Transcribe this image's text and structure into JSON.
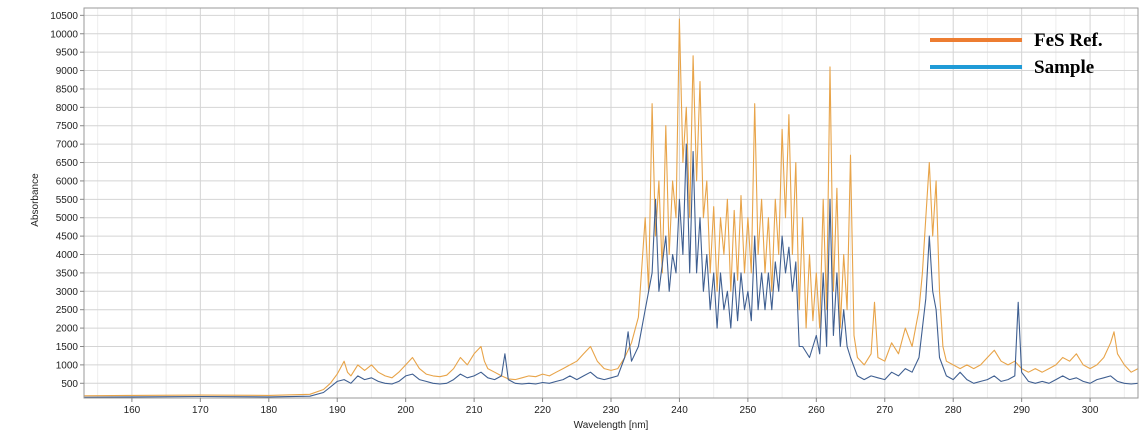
{
  "chart_data": {
    "type": "line",
    "title": "",
    "xlabel": "Wavelength [nm]",
    "ylabel": "Absorbance",
    "xlim": [
      153,
      307
    ],
    "ylim": [
      100,
      10700
    ],
    "grid": true,
    "legend_position": "top-right",
    "x_ticks": [
      160,
      170,
      180,
      190,
      200,
      210,
      220,
      230,
      240,
      250,
      260,
      270,
      280,
      290,
      300
    ],
    "y_ticks": [
      500,
      1000,
      1500,
      2000,
      2500,
      3000,
      3500,
      4000,
      4500,
      5000,
      5500,
      6000,
      6500,
      7000,
      7500,
      8000,
      8500,
      9000,
      9500,
      10000,
      10500
    ],
    "series": [
      {
        "name": "FeS Ref.",
        "color": "#e8a449",
        "legend_color": "#ed7d31",
        "points": [
          [
            153,
            160
          ],
          [
            160,
            170
          ],
          [
            170,
            180
          ],
          [
            180,
            170
          ],
          [
            186,
            200
          ],
          [
            188,
            330
          ],
          [
            189,
            500
          ],
          [
            190,
            750
          ],
          [
            191,
            1100
          ],
          [
            191.5,
            800
          ],
          [
            192,
            700
          ],
          [
            193,
            1000
          ],
          [
            194,
            850
          ],
          [
            195,
            1000
          ],
          [
            196,
            800
          ],
          [
            197,
            700
          ],
          [
            198,
            650
          ],
          [
            199,
            800
          ],
          [
            200,
            1000
          ],
          [
            201,
            1200
          ],
          [
            202,
            900
          ],
          [
            203,
            750
          ],
          [
            204,
            700
          ],
          [
            205,
            680
          ],
          [
            206,
            720
          ],
          [
            207,
            900
          ],
          [
            208,
            1200
          ],
          [
            209,
            1000
          ],
          [
            210,
            1300
          ],
          [
            211,
            1500
          ],
          [
            211.5,
            1100
          ],
          [
            212,
            900
          ],
          [
            213,
            800
          ],
          [
            214,
            700
          ],
          [
            215,
            620
          ],
          [
            216,
            600
          ],
          [
            217,
            650
          ],
          [
            218,
            700
          ],
          [
            219,
            680
          ],
          [
            220,
            750
          ],
          [
            221,
            700
          ],
          [
            222,
            800
          ],
          [
            223,
            900
          ],
          [
            224,
            1000
          ],
          [
            225,
            1100
          ],
          [
            226,
            1300
          ],
          [
            227,
            1500
          ],
          [
            228,
            1100
          ],
          [
            229,
            900
          ],
          [
            230,
            850
          ],
          [
            231,
            900
          ],
          [
            232,
            1200
          ],
          [
            233,
            1600
          ],
          [
            234,
            2300
          ],
          [
            235,
            5000
          ],
          [
            235.5,
            3000
          ],
          [
            236,
            8100
          ],
          [
            236.5,
            4500
          ],
          [
            237,
            6000
          ],
          [
            237.5,
            3500
          ],
          [
            238,
            7500
          ],
          [
            238.5,
            4000
          ],
          [
            239,
            6000
          ],
          [
            239.5,
            5000
          ],
          [
            240,
            10400
          ],
          [
            240.5,
            6500
          ],
          [
            241,
            8000
          ],
          [
            241.5,
            5000
          ],
          [
            242,
            9400
          ],
          [
            242.5,
            6000
          ],
          [
            243,
            8700
          ],
          [
            243.5,
            5000
          ],
          [
            244,
            6000
          ],
          [
            244.5,
            3500
          ],
          [
            245,
            5300
          ],
          [
            245.5,
            3000
          ],
          [
            246,
            5000
          ],
          [
            246.5,
            4000
          ],
          [
            247,
            5500
          ],
          [
            247.5,
            3000
          ],
          [
            248,
            5200
          ],
          [
            248.5,
            3300
          ],
          [
            249,
            5600
          ],
          [
            249.5,
            3500
          ],
          [
            250,
            5000
          ],
          [
            250.5,
            3500
          ],
          [
            251,
            8100
          ],
          [
            251.5,
            4000
          ],
          [
            252,
            5500
          ],
          [
            252.5,
            3500
          ],
          [
            253,
            5000
          ],
          [
            253.5,
            3000
          ],
          [
            254,
            5500
          ],
          [
            254.5,
            4000
          ],
          [
            255,
            7400
          ],
          [
            255.5,
            5000
          ],
          [
            256,
            7800
          ],
          [
            256.5,
            4000
          ],
          [
            257,
            6500
          ],
          [
            257.5,
            2500
          ],
          [
            258,
            5000
          ],
          [
            258.5,
            2000
          ],
          [
            259,
            4000
          ],
          [
            259.5,
            2200
          ],
          [
            260,
            3500
          ],
          [
            260.5,
            2000
          ],
          [
            261,
            5500
          ],
          [
            261.5,
            2500
          ],
          [
            262,
            9100
          ],
          [
            262.5,
            3000
          ],
          [
            263,
            5800
          ],
          [
            263.5,
            2000
          ],
          [
            264,
            4000
          ],
          [
            264.5,
            2500
          ],
          [
            265,
            6700
          ],
          [
            265.5,
            1800
          ],
          [
            266,
            1200
          ],
          [
            267,
            1000
          ],
          [
            268,
            1300
          ],
          [
            268.5,
            2700
          ],
          [
            269,
            1200
          ],
          [
            270,
            1100
          ],
          [
            271,
            1600
          ],
          [
            272,
            1300
          ],
          [
            273,
            2000
          ],
          [
            274,
            1500
          ],
          [
            275,
            2500
          ],
          [
            275.5,
            3500
          ],
          [
            276,
            5000
          ],
          [
            276.5,
            6500
          ],
          [
            277,
            4500
          ],
          [
            277.5,
            6000
          ],
          [
            278,
            3000
          ],
          [
            278.5,
            1500
          ],
          [
            279,
            1100
          ],
          [
            280,
            1000
          ],
          [
            281,
            900
          ],
          [
            282,
            1000
          ],
          [
            283,
            900
          ],
          [
            284,
            1000
          ],
          [
            285,
            1200
          ],
          [
            286,
            1400
          ],
          [
            287,
            1100
          ],
          [
            288,
            1000
          ],
          [
            289,
            1100
          ],
          [
            290,
            900
          ],
          [
            291,
            800
          ],
          [
            292,
            900
          ],
          [
            293,
            800
          ],
          [
            294,
            900
          ],
          [
            295,
            1000
          ],
          [
            296,
            1200
          ],
          [
            297,
            1100
          ],
          [
            298,
            1300
          ],
          [
            299,
            1000
          ],
          [
            300,
            900
          ],
          [
            301,
            1000
          ],
          [
            302,
            1200
          ],
          [
            303,
            1600
          ],
          [
            303.5,
            1900
          ],
          [
            304,
            1300
          ],
          [
            305,
            1000
          ],
          [
            306,
            800
          ],
          [
            307,
            900
          ]
        ]
      },
      {
        "name": "Sample",
        "color": "#3f5f91",
        "legend_color": "#1f9bd7",
        "points": [
          [
            153,
            120
          ],
          [
            160,
            130
          ],
          [
            170,
            140
          ],
          [
            180,
            130
          ],
          [
            186,
            150
          ],
          [
            188,
            250
          ],
          [
            189,
            400
          ],
          [
            190,
            550
          ],
          [
            191,
            600
          ],
          [
            192,
            500
          ],
          [
            193,
            700
          ],
          [
            194,
            600
          ],
          [
            195,
            650
          ],
          [
            196,
            550
          ],
          [
            197,
            500
          ],
          [
            198,
            480
          ],
          [
            199,
            550
          ],
          [
            200,
            700
          ],
          [
            201,
            750
          ],
          [
            202,
            600
          ],
          [
            203,
            550
          ],
          [
            204,
            500
          ],
          [
            205,
            480
          ],
          [
            206,
            500
          ],
          [
            207,
            600
          ],
          [
            208,
            750
          ],
          [
            209,
            650
          ],
          [
            210,
            700
          ],
          [
            211,
            800
          ],
          [
            212,
            650
          ],
          [
            213,
            600
          ],
          [
            214,
            700
          ],
          [
            214.5,
            1300
          ],
          [
            215,
            600
          ],
          [
            216,
            500
          ],
          [
            217,
            480
          ],
          [
            218,
            500
          ],
          [
            219,
            480
          ],
          [
            220,
            520
          ],
          [
            221,
            500
          ],
          [
            222,
            550
          ],
          [
            223,
            600
          ],
          [
            224,
            700
          ],
          [
            225,
            600
          ],
          [
            226,
            700
          ],
          [
            227,
            800
          ],
          [
            228,
            650
          ],
          [
            229,
            600
          ],
          [
            230,
            650
          ],
          [
            231,
            700
          ],
          [
            232,
            1200
          ],
          [
            232.5,
            1900
          ],
          [
            233,
            1100
          ],
          [
            234,
            1500
          ],
          [
            235,
            2500
          ],
          [
            236,
            3500
          ],
          [
            236.5,
            5500
          ],
          [
            237,
            3000
          ],
          [
            238,
            4500
          ],
          [
            238.5,
            3000
          ],
          [
            239,
            4000
          ],
          [
            239.5,
            3500
          ],
          [
            240,
            5500
          ],
          [
            240.5,
            4000
          ],
          [
            241,
            7000
          ],
          [
            241.5,
            3500
          ],
          [
            242,
            6800
          ],
          [
            242.5,
            3500
          ],
          [
            243,
            5000
          ],
          [
            243.5,
            3000
          ],
          [
            244,
            4000
          ],
          [
            244.5,
            2500
          ],
          [
            245,
            3500
          ],
          [
            245.5,
            2000
          ],
          [
            246,
            3500
          ],
          [
            246.5,
            2500
          ],
          [
            247,
            3000
          ],
          [
            247.5,
            2000
          ],
          [
            248,
            3500
          ],
          [
            248.5,
            2200
          ],
          [
            249,
            3500
          ],
          [
            249.5,
            2500
          ],
          [
            250,
            3000
          ],
          [
            250.5,
            2200
          ],
          [
            251,
            4500
          ],
          [
            251.5,
            2500
          ],
          [
            252,
            3500
          ],
          [
            252.5,
            2500
          ],
          [
            253,
            3500
          ],
          [
            253.5,
            2500
          ],
          [
            254,
            3800
          ],
          [
            254.5,
            3000
          ],
          [
            255,
            4500
          ],
          [
            255.5,
            3500
          ],
          [
            256,
            4200
          ],
          [
            256.5,
            3000
          ],
          [
            257,
            3800
          ],
          [
            257.5,
            1500
          ],
          [
            258,
            1500
          ],
          [
            259,
            1200
          ],
          [
            260,
            1800
          ],
          [
            260.5,
            1300
          ],
          [
            261,
            3500
          ],
          [
            261.5,
            1500
          ],
          [
            262,
            5500
          ],
          [
            262.5,
            1800
          ],
          [
            263,
            3500
          ],
          [
            263.5,
            1500
          ],
          [
            264,
            2500
          ],
          [
            264.5,
            1500
          ],
          [
            265,
            1200
          ],
          [
            266,
            700
          ],
          [
            267,
            600
          ],
          [
            268,
            700
          ],
          [
            269,
            650
          ],
          [
            270,
            600
          ],
          [
            271,
            800
          ],
          [
            272,
            700
          ],
          [
            273,
            900
          ],
          [
            274,
            800
          ],
          [
            275,
            1200
          ],
          [
            275.5,
            2000
          ],
          [
            276,
            2800
          ],
          [
            276.5,
            4500
          ],
          [
            277,
            3000
          ],
          [
            277.5,
            2500
          ],
          [
            278,
            1200
          ],
          [
            279,
            700
          ],
          [
            280,
            600
          ],
          [
            281,
            800
          ],
          [
            282,
            600
          ],
          [
            283,
            500
          ],
          [
            284,
            550
          ],
          [
            285,
            600
          ],
          [
            286,
            700
          ],
          [
            287,
            550
          ],
          [
            288,
            600
          ],
          [
            289,
            700
          ],
          [
            289.5,
            2700
          ],
          [
            290,
            800
          ],
          [
            291,
            550
          ],
          [
            292,
            500
          ],
          [
            293,
            550
          ],
          [
            294,
            500
          ],
          [
            295,
            600
          ],
          [
            296,
            700
          ],
          [
            297,
            600
          ],
          [
            298,
            650
          ],
          [
            299,
            550
          ],
          [
            300,
            500
          ],
          [
            301,
            600
          ],
          [
            302,
            650
          ],
          [
            303,
            700
          ],
          [
            304,
            550
          ],
          [
            305,
            500
          ],
          [
            306,
            480
          ],
          [
            307,
            500
          ]
        ]
      }
    ]
  }
}
